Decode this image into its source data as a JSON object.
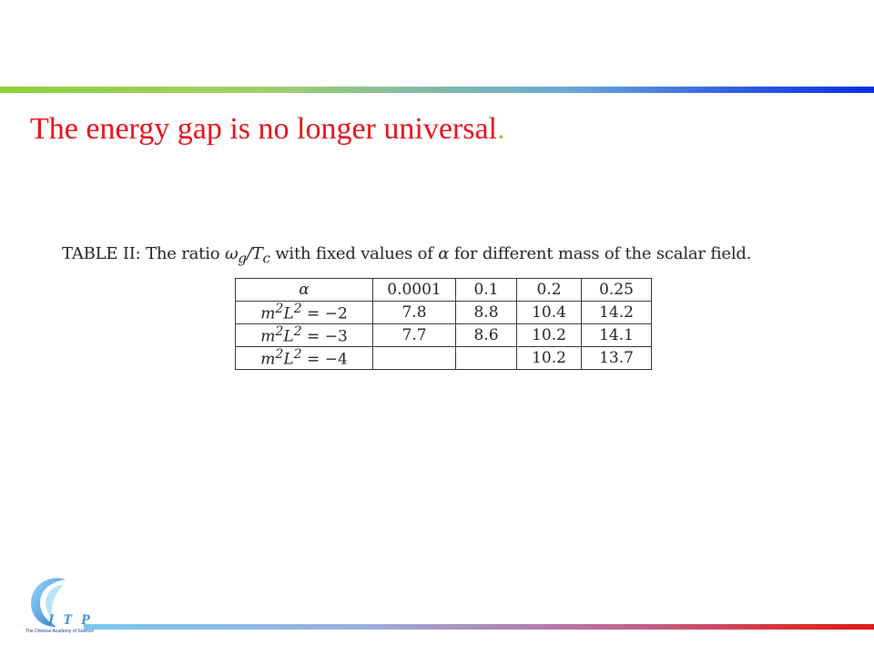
{
  "slide": {
    "title": "The energy gap is no longer universal",
    "title_period": "."
  },
  "table": {
    "caption_prefix": "TABLE II: The ratio ",
    "caption_math_1": "ω",
    "caption_math_1_sub": "g",
    "caption_math_2": "/T",
    "caption_math_2_sub": "c",
    "caption_middle": " with fixed values of ",
    "caption_alpha": "α",
    "caption_suffix": " for different mass of the scalar field.",
    "header": [
      "α",
      "0.0001",
      "0.1",
      "0.2",
      "0.25"
    ],
    "rows": [
      {
        "label_base": "m",
        "label_mid": "L",
        "label_rest": " = −2",
        "values": [
          "7.8",
          "8.8",
          "10.4",
          "14.2"
        ]
      },
      {
        "label_base": "m",
        "label_mid": "L",
        "label_rest": " = −3",
        "values": [
          "7.7",
          "8.6",
          "10.2",
          "14.1"
        ]
      },
      {
        "label_base": "m",
        "label_mid": "L",
        "label_rest": " = −4",
        "values": [
          "",
          "",
          "10.2",
          "13.7"
        ]
      }
    ],
    "exponent": "2"
  },
  "logo": {
    "text": "I T P",
    "subtitle": "The Chinese Academy of Science"
  },
  "colors": {
    "title": "#e8121b",
    "accent_green": "#8ed13a",
    "accent_blue": "#0a2ee8",
    "accent_red": "#e01818"
  }
}
